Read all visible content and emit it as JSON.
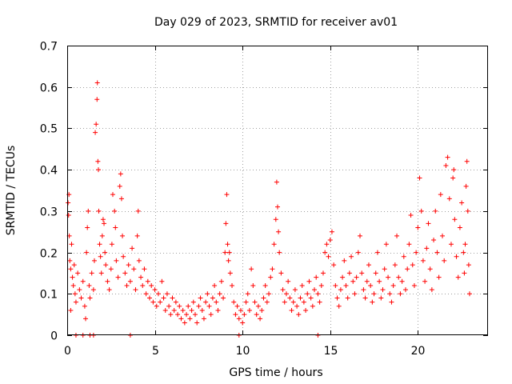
{
  "chart_data": {
    "type": "scatter",
    "title": "Day 029 of 2023, SRMTID for receiver av01",
    "xlabel": "GPS time / hours",
    "ylabel": "SRMTID / TECUs",
    "xlim": [
      0,
      24
    ],
    "ylim": [
      0,
      0.7
    ],
    "xticks": [
      0,
      5,
      10,
      15,
      20
    ],
    "xtick_labels": [
      "0",
      "5",
      "10",
      "15",
      "20"
    ],
    "yticks": [
      0,
      0.1,
      0.2,
      0.3,
      0.4,
      0.5,
      0.6,
      0.7
    ],
    "ytick_labels": [
      "0",
      "0.1",
      "0.2",
      "0.3",
      "0.4",
      "0.5",
      "0.6",
      "0.7"
    ],
    "grid": true,
    "marker": "plus",
    "color": "#ff0000",
    "series": [
      {
        "name": "SRMTID",
        "points": [
          [
            0.05,
            0.32
          ],
          [
            0.08,
            0.29
          ],
          [
            0.1,
            0.34
          ],
          [
            0.12,
            0.24
          ],
          [
            0.15,
            0.18
          ],
          [
            0.2,
            0.16
          ],
          [
            0.25,
            0.22
          ],
          [
            0.3,
            0.14
          ],
          [
            0.35,
            0.12
          ],
          [
            0.4,
            0.17
          ],
          [
            0.45,
            0.1
          ],
          [
            0.5,
            0.08
          ],
          [
            0.2,
            0.06
          ],
          [
            0.6,
            0.15
          ],
          [
            0.7,
            0.11
          ],
          [
            0.8,
            0.09
          ],
          [
            0.9,
            0.13
          ],
          [
            1.0,
            0.07
          ],
          [
            1.05,
            0.04
          ],
          [
            1.1,
            0.2
          ],
          [
            1.15,
            0.26
          ],
          [
            1.2,
            0.3
          ],
          [
            1.25,
            0.12
          ],
          [
            1.3,
            0.09
          ],
          [
            1.4,
            0.15
          ],
          [
            1.5,
            0.11
          ],
          [
            1.55,
            0.18
          ],
          [
            1.6,
            0.49
          ],
          [
            1.65,
            0.51
          ],
          [
            1.7,
            0.57
          ],
          [
            1.72,
            0.61
          ],
          [
            1.75,
            0.42
          ],
          [
            1.78,
            0.4
          ],
          [
            1.8,
            0.3
          ],
          [
            1.85,
            0.22
          ],
          [
            1.9,
            0.19
          ],
          [
            1.95,
            0.15
          ],
          [
            2.0,
            0.24
          ],
          [
            2.05,
            0.28
          ],
          [
            2.1,
            0.27
          ],
          [
            2.15,
            0.2
          ],
          [
            2.2,
            0.17
          ],
          [
            2.3,
            0.13
          ],
          [
            2.4,
            0.11
          ],
          [
            2.5,
            0.16
          ],
          [
            2.55,
            0.22
          ],
          [
            2.6,
            0.34
          ],
          [
            2.7,
            0.3
          ],
          [
            2.75,
            0.26
          ],
          [
            2.8,
            0.18
          ],
          [
            2.9,
            0.14
          ],
          [
            3.0,
            0.36
          ],
          [
            3.05,
            0.39
          ],
          [
            3.1,
            0.33
          ],
          [
            3.15,
            0.24
          ],
          [
            3.2,
            0.19
          ],
          [
            3.3,
            0.15
          ],
          [
            3.4,
            0.12
          ],
          [
            3.5,
            0.17
          ],
          [
            3.6,
            0.13
          ],
          [
            3.7,
            0.21
          ],
          [
            3.8,
            0.16
          ],
          [
            3.9,
            0.11
          ],
          [
            4.0,
            0.24
          ],
          [
            4.05,
            0.3
          ],
          [
            4.1,
            0.18
          ],
          [
            4.2,
            0.14
          ],
          [
            4.3,
            0.12
          ],
          [
            4.4,
            0.16
          ],
          [
            4.5,
            0.1
          ],
          [
            4.6,
            0.13
          ],
          [
            4.7,
            0.09
          ],
          [
            4.8,
            0.12
          ],
          [
            4.9,
            0.08
          ],
          [
            5.0,
            0.11
          ],
          [
            5.1,
            0.07
          ],
          [
            5.2,
            0.1
          ],
          [
            5.3,
            0.08
          ],
          [
            5.4,
            0.13
          ],
          [
            5.5,
            0.09
          ],
          [
            5.6,
            0.06
          ],
          [
            5.7,
            0.1
          ],
          [
            5.8,
            0.07
          ],
          [
            5.9,
            0.05
          ],
          [
            6.0,
            0.09
          ],
          [
            6.1,
            0.06
          ],
          [
            6.2,
            0.08
          ],
          [
            6.3,
            0.05
          ],
          [
            6.4,
            0.07
          ],
          [
            6.5,
            0.04
          ],
          [
            6.6,
            0.06
          ],
          [
            6.7,
            0.03
          ],
          [
            6.8,
            0.05
          ],
          [
            6.9,
            0.07
          ],
          [
            7.0,
            0.04
          ],
          [
            7.1,
            0.06
          ],
          [
            7.2,
            0.08
          ],
          [
            7.3,
            0.05
          ],
          [
            7.4,
            0.03
          ],
          [
            7.5,
            0.07
          ],
          [
            7.6,
            0.09
          ],
          [
            7.7,
            0.06
          ],
          [
            7.8,
            0.04
          ],
          [
            7.9,
            0.08
          ],
          [
            8.0,
            0.1
          ],
          [
            8.1,
            0.07
          ],
          [
            8.2,
            0.05
          ],
          [
            8.3,
            0.09
          ],
          [
            8.4,
            0.12
          ],
          [
            8.5,
            0.08
          ],
          [
            8.6,
            0.06
          ],
          [
            8.7,
            0.1
          ],
          [
            8.8,
            0.13
          ],
          [
            8.9,
            0.09
          ],
          [
            9.0,
            0.2
          ],
          [
            9.05,
            0.27
          ],
          [
            9.1,
            0.34
          ],
          [
            9.15,
            0.22
          ],
          [
            9.2,
            0.18
          ],
          [
            9.25,
            0.2
          ],
          [
            9.3,
            0.15
          ],
          [
            9.4,
            0.12
          ],
          [
            9.5,
            0.08
          ],
          [
            9.6,
            0.05
          ],
          [
            9.7,
            0.07
          ],
          [
            9.8,
            0.04
          ],
          [
            9.9,
            0.06
          ],
          [
            10.0,
            0.03
          ],
          [
            10.1,
            0.05
          ],
          [
            10.2,
            0.08
          ],
          [
            10.3,
            0.1
          ],
          [
            10.4,
            0.06
          ],
          [
            10.5,
            0.16
          ],
          [
            10.6,
            0.12
          ],
          [
            10.7,
            0.08
          ],
          [
            10.8,
            0.05
          ],
          [
            10.9,
            0.07
          ],
          [
            11.0,
            0.04
          ],
          [
            11.1,
            0.06
          ],
          [
            11.2,
            0.09
          ],
          [
            11.3,
            0.12
          ],
          [
            11.4,
            0.08
          ],
          [
            11.5,
            0.1
          ],
          [
            11.6,
            0.14
          ],
          [
            11.7,
            0.16
          ],
          [
            11.8,
            0.22
          ],
          [
            11.9,
            0.28
          ],
          [
            11.95,
            0.37
          ],
          [
            12.0,
            0.31
          ],
          [
            12.05,
            0.25
          ],
          [
            12.1,
            0.2
          ],
          [
            12.2,
            0.15
          ],
          [
            12.3,
            0.11
          ],
          [
            12.4,
            0.08
          ],
          [
            12.5,
            0.1
          ],
          [
            12.6,
            0.13
          ],
          [
            12.7,
            0.09
          ],
          [
            12.8,
            0.06
          ],
          [
            12.9,
            0.08
          ],
          [
            13.0,
            0.11
          ],
          [
            13.1,
            0.07
          ],
          [
            13.2,
            0.05
          ],
          [
            13.3,
            0.09
          ],
          [
            13.4,
            0.12
          ],
          [
            13.5,
            0.08
          ],
          [
            13.6,
            0.06
          ],
          [
            13.7,
            0.1
          ],
          [
            13.8,
            0.13
          ],
          [
            13.9,
            0.09
          ],
          [
            14.0,
            0.07
          ],
          [
            14.1,
            0.11
          ],
          [
            14.2,
            0.14
          ],
          [
            14.3,
            0.1
          ],
          [
            14.4,
            0.08
          ],
          [
            14.5,
            0.12
          ],
          [
            14.6,
            0.15
          ],
          [
            14.7,
            0.2
          ],
          [
            14.8,
            0.22
          ],
          [
            14.9,
            0.19
          ],
          [
            15.0,
            0.23
          ],
          [
            15.1,
            0.25
          ],
          [
            15.2,
            0.17
          ],
          [
            15.3,
            0.12
          ],
          [
            15.4,
            0.09
          ],
          [
            15.5,
            0.07
          ],
          [
            15.6,
            0.11
          ],
          [
            15.7,
            0.14
          ],
          [
            15.8,
            0.18
          ],
          [
            15.9,
            0.12
          ],
          [
            16.0,
            0.09
          ],
          [
            16.1,
            0.15
          ],
          [
            16.2,
            0.19
          ],
          [
            16.3,
            0.13
          ],
          [
            16.4,
            0.1
          ],
          [
            16.5,
            0.14
          ],
          [
            16.6,
            0.2
          ],
          [
            16.7,
            0.24
          ],
          [
            16.8,
            0.15
          ],
          [
            16.9,
            0.11
          ],
          [
            17.0,
            0.09
          ],
          [
            17.1,
            0.13
          ],
          [
            17.2,
            0.17
          ],
          [
            17.3,
            0.12
          ],
          [
            17.4,
            0.08
          ],
          [
            17.5,
            0.1
          ],
          [
            17.6,
            0.15
          ],
          [
            17.7,
            0.2
          ],
          [
            17.8,
            0.13
          ],
          [
            17.9,
            0.09
          ],
          [
            18.0,
            0.11
          ],
          [
            18.1,
            0.16
          ],
          [
            18.2,
            0.22
          ],
          [
            18.3,
            0.14
          ],
          [
            18.4,
            0.1
          ],
          [
            18.5,
            0.08
          ],
          [
            18.6,
            0.12
          ],
          [
            18.7,
            0.17
          ],
          [
            18.8,
            0.24
          ],
          [
            18.9,
            0.14
          ],
          [
            19.0,
            0.1
          ],
          [
            19.1,
            0.13
          ],
          [
            19.2,
            0.19
          ],
          [
            19.3,
            0.11
          ],
          [
            19.4,
            0.16
          ],
          [
            19.5,
            0.22
          ],
          [
            19.6,
            0.29
          ],
          [
            19.7,
            0.17
          ],
          [
            19.8,
            0.12
          ],
          [
            19.9,
            0.2
          ],
          [
            20.0,
            0.26
          ],
          [
            20.1,
            0.38
          ],
          [
            20.2,
            0.3
          ],
          [
            20.3,
            0.18
          ],
          [
            20.4,
            0.13
          ],
          [
            20.5,
            0.21
          ],
          [
            20.6,
            0.27
          ],
          [
            20.7,
            0.16
          ],
          [
            20.8,
            0.11
          ],
          [
            20.9,
            0.23
          ],
          [
            21.0,
            0.3
          ],
          [
            21.1,
            0.2
          ],
          [
            21.2,
            0.14
          ],
          [
            21.3,
            0.34
          ],
          [
            21.4,
            0.24
          ],
          [
            21.5,
            0.18
          ],
          [
            21.6,
            0.41
          ],
          [
            21.7,
            0.43
          ],
          [
            21.8,
            0.33
          ],
          [
            21.9,
            0.22
          ],
          [
            22.0,
            0.38
          ],
          [
            22.05,
            0.4
          ],
          [
            22.1,
            0.28
          ],
          [
            22.2,
            0.19
          ],
          [
            22.3,
            0.14
          ],
          [
            22.4,
            0.26
          ],
          [
            22.5,
            0.32
          ],
          [
            22.6,
            0.2
          ],
          [
            22.65,
            0.15
          ],
          [
            22.7,
            0.22
          ],
          [
            22.75,
            0.36
          ],
          [
            22.8,
            0.42
          ],
          [
            22.85,
            0.3
          ],
          [
            22.9,
            0.17
          ],
          [
            22.95,
            0.1
          ]
        ]
      }
    ],
    "zero_markers_x": [
      0.5,
      0.9,
      1.3,
      1.5,
      3.6,
      9.8,
      14.3
    ]
  }
}
